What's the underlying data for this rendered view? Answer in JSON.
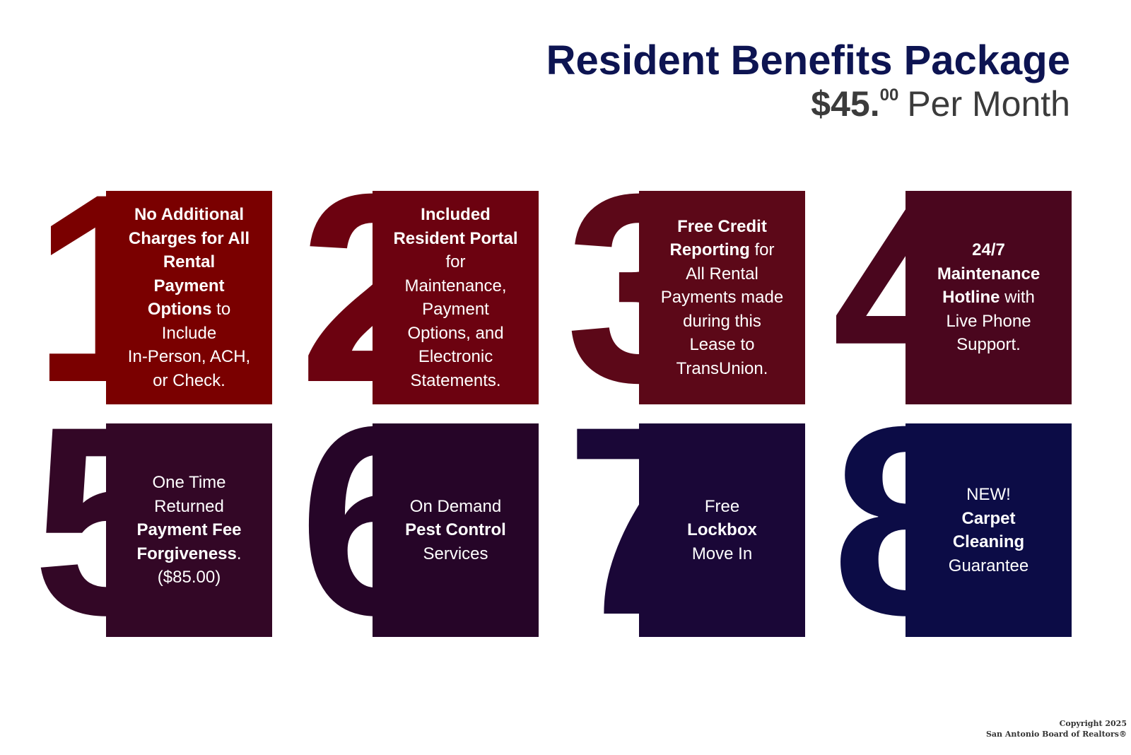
{
  "header": {
    "title": "Resident Benefits Package",
    "price_main": "$45.",
    "price_cents": "00",
    "price_period": "Per Month"
  },
  "cards": [
    {
      "number": "1",
      "color": "#7a0000",
      "lines": [
        [
          {
            "text": "No Additional",
            "bold": true
          }
        ],
        [
          {
            "text": "Charges for All",
            "bold": true
          }
        ],
        [
          {
            "text": "Rental",
            "bold": true
          }
        ],
        [
          {
            "text": "Payment",
            "bold": true
          }
        ],
        [
          {
            "text": "Options",
            "bold": true
          },
          {
            "text": " to",
            "bold": false
          }
        ],
        [
          {
            "text": "Include",
            "bold": false
          }
        ],
        [
          {
            "text": "In-Person, ACH,",
            "bold": false
          }
        ],
        [
          {
            "text": "or Check.",
            "bold": false
          }
        ]
      ]
    },
    {
      "number": "2",
      "color": "#6c0210",
      "lines": [
        [
          {
            "text": "Included",
            "bold": true
          }
        ],
        [
          {
            "text": "Resident Portal",
            "bold": true
          }
        ],
        [
          {
            "text": "for",
            "bold": false
          }
        ],
        [
          {
            "text": "Maintenance,",
            "bold": false
          }
        ],
        [
          {
            "text": "Payment",
            "bold": false
          }
        ],
        [
          {
            "text": "Options, and",
            "bold": false
          }
        ],
        [
          {
            "text": "Electronic",
            "bold": false
          }
        ],
        [
          {
            "text": "Statements.",
            "bold": false
          }
        ]
      ]
    },
    {
      "number": "3",
      "color": "#5c0818",
      "lines": [
        [
          {
            "text": "Free Credit",
            "bold": true
          }
        ],
        [
          {
            "text": "Reporting",
            "bold": true
          },
          {
            "text": " for",
            "bold": false
          }
        ],
        [
          {
            "text": "All Rental",
            "bold": false
          }
        ],
        [
          {
            "text": "Payments made",
            "bold": false
          }
        ],
        [
          {
            "text": "during this",
            "bold": false
          }
        ],
        [
          {
            "text": "Lease to",
            "bold": false
          }
        ],
        [
          {
            "text": "TransUnion.",
            "bold": false
          }
        ]
      ]
    },
    {
      "number": "4",
      "color": "#4a061e",
      "lines": [
        [
          {
            "text": "24/7",
            "bold": true
          }
        ],
        [
          {
            "text": "Maintenance",
            "bold": true
          }
        ],
        [
          {
            "text": "Hotline",
            "bold": true
          },
          {
            "text": " with",
            "bold": false
          }
        ],
        [
          {
            "text": "Live Phone",
            "bold": false
          }
        ],
        [
          {
            "text": "Support.",
            "bold": false
          }
        ]
      ]
    },
    {
      "number": "5",
      "color": "#330726",
      "lines": [
        [
          {
            "text": "One Time",
            "bold": false
          }
        ],
        [
          {
            "text": "Returned",
            "bold": false
          }
        ],
        [
          {
            "text": "Payment Fee",
            "bold": true
          }
        ],
        [
          {
            "text": "Forgiveness",
            "bold": true
          },
          {
            "text": ".",
            "bold": false
          }
        ],
        [
          {
            "text": "($85.00)",
            "bold": false
          }
        ]
      ]
    },
    {
      "number": "6",
      "color": "#260528",
      "lines": [
        [
          {
            "text": "On Demand",
            "bold": false
          }
        ],
        [
          {
            "text": "Pest Control",
            "bold": true
          }
        ],
        [
          {
            "text": "Services",
            "bold": false
          }
        ]
      ]
    },
    {
      "number": "7",
      "color": "#1a0737",
      "lines": [
        [
          {
            "text": "Free",
            "bold": false
          }
        ],
        [
          {
            "text": "Lockbox",
            "bold": true
          }
        ],
        [
          {
            "text": "Move In",
            "bold": false
          }
        ]
      ]
    },
    {
      "number": "8",
      "color": "#0c0c46",
      "lines": [
        [
          {
            "text": "NEW!",
            "bold": false
          }
        ],
        [
          {
            "text": "Carpet",
            "bold": true
          }
        ],
        [
          {
            "text": "Cleaning",
            "bold": true
          }
        ],
        [
          {
            "text": "Guarantee",
            "bold": false
          }
        ]
      ]
    }
  ],
  "footer": {
    "line1": "Copyright 2025",
    "line2": "San Antonio Board of Realtors®"
  }
}
